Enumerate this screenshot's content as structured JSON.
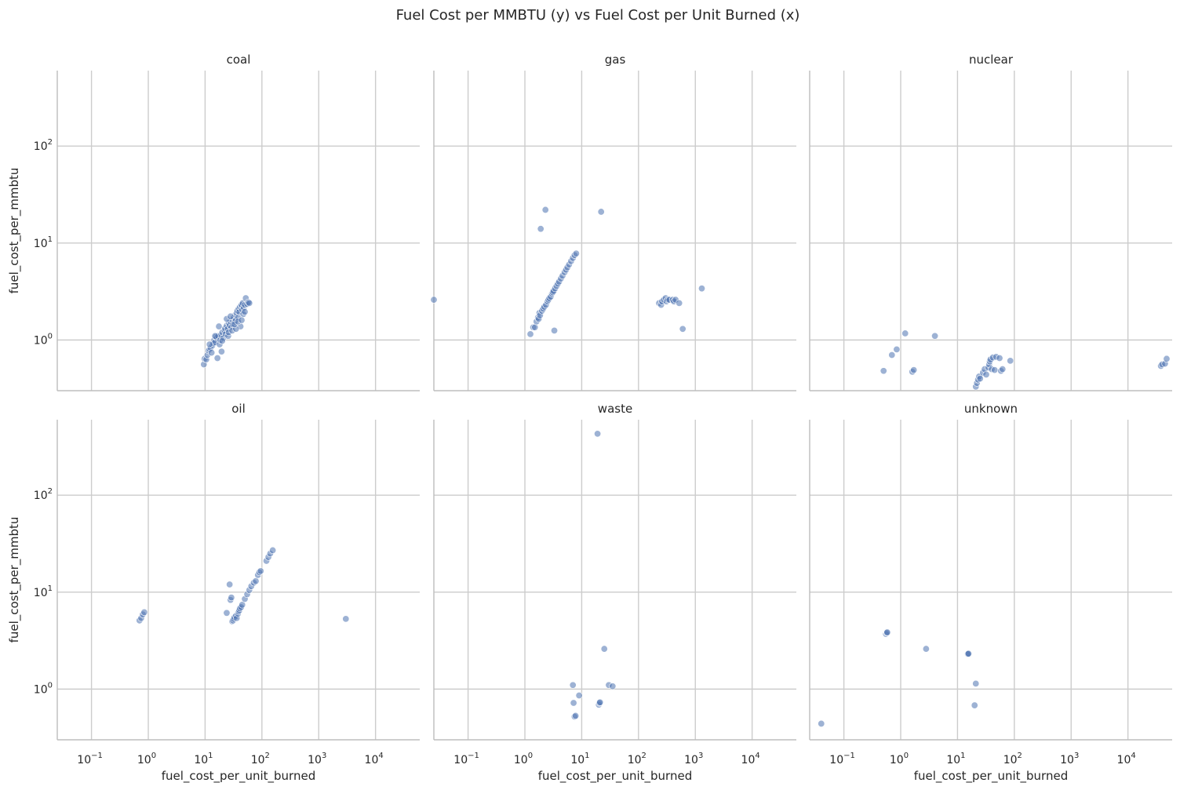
{
  "chart_data": {
    "type": "scatter",
    "title": "Fuel Cost per MMBTU (y) vs Fuel Cost per Unit Burned (x)",
    "xlabel": "fuel_cost_per_unit_burned",
    "ylabel": "fuel_cost_per_mmbtu",
    "xscale": "log",
    "yscale": "log",
    "xlim": [
      0.025,
      60000
    ],
    "ylim": [
      0.3,
      600
    ],
    "x_ticks": [
      {
        "base": "10",
        "exp": "−1",
        "value": 0.1
      },
      {
        "base": "10",
        "exp": "0",
        "value": 1
      },
      {
        "base": "10",
        "exp": "1",
        "value": 10
      },
      {
        "base": "10",
        "exp": "2",
        "value": 100
      },
      {
        "base": "10",
        "exp": "3",
        "value": 1000
      },
      {
        "base": "10",
        "exp": "4",
        "value": 10000
      }
    ],
    "y_ticks": [
      {
        "base": "10",
        "exp": "0",
        "value": 1
      },
      {
        "base": "10",
        "exp": "1",
        "value": 10
      },
      {
        "base": "10",
        "exp": "2",
        "value": 100
      }
    ],
    "grid": true,
    "color": "#4c72b0",
    "facets": [
      {
        "name": "coal",
        "points": [
          [
            9.5,
            0.56
          ],
          [
            9.8,
            0.64
          ],
          [
            10.5,
            0.63
          ],
          [
            11,
            0.7
          ],
          [
            11.5,
            0.78
          ],
          [
            12,
            0.8
          ],
          [
            12.5,
            0.83
          ],
          [
            13,
            0.74
          ],
          [
            13.5,
            0.88
          ],
          [
            14,
            0.92
          ],
          [
            14.5,
            1.0
          ],
          [
            15,
            0.95
          ],
          [
            15.5,
            1.08
          ],
          [
            16,
            1.05
          ],
          [
            16.5,
            0.65
          ],
          [
            17,
            1.1
          ],
          [
            17.5,
            1.38
          ],
          [
            18,
            0.9
          ],
          [
            18.5,
            1.0
          ],
          [
            19,
            1.12
          ],
          [
            19.5,
            0.76
          ],
          [
            20,
            1.2
          ],
          [
            21,
            1.05
          ],
          [
            22,
            1.25
          ],
          [
            22.5,
            1.32
          ],
          [
            23,
            1.15
          ],
          [
            24,
            1.4
          ],
          [
            25,
            1.3
          ],
          [
            25.5,
            1.1
          ],
          [
            26,
            1.5
          ],
          [
            27,
            1.42
          ],
          [
            28,
            1.55
          ],
          [
            29,
            1.35
          ],
          [
            30,
            1.6
          ],
          [
            31,
            1.45
          ],
          [
            32,
            1.7
          ],
          [
            33,
            1.55
          ],
          [
            34,
            1.82
          ],
          [
            35,
            1.6
          ],
          [
            36,
            1.9
          ],
          [
            37,
            2.0
          ],
          [
            38,
            1.7
          ],
          [
            39,
            2.1
          ],
          [
            40,
            1.95
          ],
          [
            41,
            2.2
          ],
          [
            42,
            1.38
          ],
          [
            43,
            2.25
          ],
          [
            44,
            2.3
          ],
          [
            45,
            2.05
          ],
          [
            46,
            2.4
          ],
          [
            47,
            1.85
          ],
          [
            48,
            2.15
          ],
          [
            50,
            2.3
          ],
          [
            52,
            2.7
          ],
          [
            55,
            2.35
          ],
          [
            58,
            2.45
          ],
          [
            60,
            2.4
          ],
          [
            26,
            1.2
          ],
          [
            30,
            1.25
          ],
          [
            35,
            1.3
          ],
          [
            20,
            0.98
          ],
          [
            15,
            1.1
          ],
          [
            12,
            0.9
          ],
          [
            24,
            1.65
          ],
          [
            28,
            1.75
          ],
          [
            33,
            1.45
          ],
          [
            38,
            1.55
          ],
          [
            44,
            1.6
          ],
          [
            50,
            1.95
          ]
        ]
      },
      {
        "name": "gas",
        "points": [
          [
            0.025,
            2.6
          ],
          [
            1.25,
            1.15
          ],
          [
            1.4,
            1.35
          ],
          [
            1.5,
            1.35
          ],
          [
            1.6,
            1.55
          ],
          [
            1.7,
            1.7
          ],
          [
            1.75,
            1.65
          ],
          [
            1.8,
            1.9
          ],
          [
            1.85,
            1.8
          ],
          [
            1.9,
            14
          ],
          [
            2.0,
            2.0
          ],
          [
            2.1,
            2.1
          ],
          [
            2.2,
            2.2
          ],
          [
            2.3,
            22
          ],
          [
            2.35,
            2.3
          ],
          [
            2.5,
            2.5
          ],
          [
            2.6,
            2.6
          ],
          [
            2.7,
            2.7
          ],
          [
            2.85,
            2.8
          ],
          [
            3.0,
            3.0
          ],
          [
            3.1,
            3.1
          ],
          [
            3.2,
            3.2
          ],
          [
            3.3,
            1.25
          ],
          [
            3.4,
            3.4
          ],
          [
            3.6,
            3.6
          ],
          [
            3.8,
            3.8
          ],
          [
            4.0,
            4.0
          ],
          [
            4.3,
            4.3
          ],
          [
            4.6,
            4.6
          ],
          [
            5.0,
            5.0
          ],
          [
            5.3,
            5.3
          ],
          [
            5.6,
            5.6
          ],
          [
            6.0,
            6.0
          ],
          [
            6.5,
            6.5
          ],
          [
            7.0,
            7.0
          ],
          [
            7.5,
            7.5
          ],
          [
            8.0,
            7.8
          ],
          [
            22,
            21
          ],
          [
            230,
            2.4
          ],
          [
            250,
            2.3
          ],
          [
            260,
            2.5
          ],
          [
            280,
            2.6
          ],
          [
            300,
            2.7
          ],
          [
            310,
            2.5
          ],
          [
            330,
            2.6
          ],
          [
            350,
            2.6
          ],
          [
            400,
            2.6
          ],
          [
            420,
            2.5
          ],
          [
            450,
            2.6
          ],
          [
            520,
            2.4
          ],
          [
            600,
            1.3
          ],
          [
            1300,
            3.4
          ]
        ]
      },
      {
        "name": "nuclear",
        "points": [
          [
            0.5,
            0.48
          ],
          [
            0.7,
            0.7
          ],
          [
            0.85,
            0.8
          ],
          [
            1.2,
            1.17
          ],
          [
            1.6,
            0.47
          ],
          [
            1.7,
            0.49
          ],
          [
            4.0,
            1.1
          ],
          [
            21,
            0.33
          ],
          [
            22,
            0.36
          ],
          [
            23,
            0.39
          ],
          [
            24,
            0.42
          ],
          [
            25,
            0.4
          ],
          [
            28,
            0.46
          ],
          [
            30,
            0.5
          ],
          [
            32,
            0.44
          ],
          [
            35,
            0.52
          ],
          [
            36,
            0.56
          ],
          [
            37,
            0.6
          ],
          [
            38,
            0.63
          ],
          [
            40,
            0.5
          ],
          [
            42,
            0.66
          ],
          [
            45,
            0.49
          ],
          [
            48,
            0.67
          ],
          [
            55,
            0.65
          ],
          [
            58,
            0.48
          ],
          [
            62,
            0.5
          ],
          [
            85,
            0.61
          ],
          [
            38000,
            0.54
          ],
          [
            40000,
            0.56
          ],
          [
            45000,
            0.57
          ],
          [
            48000,
            0.64
          ]
        ]
      },
      {
        "name": "oil",
        "points": [
          [
            0.7,
            5.1
          ],
          [
            0.75,
            5.4
          ],
          [
            0.8,
            5.9
          ],
          [
            0.85,
            6.2
          ],
          [
            24,
            6.1
          ],
          [
            27,
            12
          ],
          [
            28,
            8.3
          ],
          [
            29,
            8.8
          ],
          [
            30,
            5.0
          ],
          [
            31,
            5.1
          ],
          [
            32,
            5.3
          ],
          [
            33,
            5.5
          ],
          [
            35,
            5.7
          ],
          [
            36,
            5.4
          ],
          [
            38,
            6.0
          ],
          [
            39,
            6.3
          ],
          [
            40,
            6.5
          ],
          [
            41,
            6.8
          ],
          [
            43,
            7.0
          ],
          [
            45,
            7.4
          ],
          [
            50,
            8.5
          ],
          [
            55,
            9.5
          ],
          [
            60,
            10.5
          ],
          [
            65,
            11.5
          ],
          [
            72,
            12.5
          ],
          [
            78,
            13
          ],
          [
            85,
            15
          ],
          [
            90,
            16
          ],
          [
            95,
            16.5
          ],
          [
            120,
            21
          ],
          [
            130,
            23
          ],
          [
            140,
            25
          ],
          [
            155,
            27
          ],
          [
            3000,
            5.3
          ]
        ]
      },
      {
        "name": "waste",
        "points": [
          [
            7.0,
            1.1
          ],
          [
            7.2,
            0.72
          ],
          [
            7.5,
            0.52
          ],
          [
            7.8,
            0.53
          ],
          [
            9.0,
            0.86
          ],
          [
            19,
            430
          ],
          [
            20,
            0.69
          ],
          [
            20.5,
            0.72
          ],
          [
            21,
            0.73
          ],
          [
            25,
            2.6
          ],
          [
            30,
            1.1
          ],
          [
            35,
            1.07
          ]
        ]
      },
      {
        "name": "unknown",
        "points": [
          [
            0.04,
            0.44
          ],
          [
            0.55,
            3.7
          ],
          [
            0.57,
            3.8
          ],
          [
            0.58,
            3.85
          ],
          [
            2.8,
            2.6
          ],
          [
            15,
            2.3
          ],
          [
            15.3,
            2.3
          ],
          [
            15.6,
            2.32
          ],
          [
            20,
            0.68
          ],
          [
            21,
            1.14
          ]
        ]
      }
    ]
  }
}
